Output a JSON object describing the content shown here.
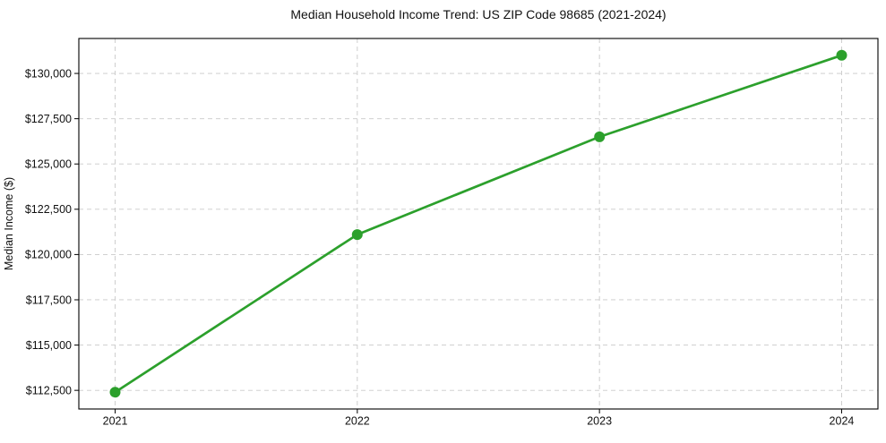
{
  "figure": {
    "background": "#ffffff"
  },
  "chart_data": {
    "type": "line",
    "title": "Median Household Income Trend: US ZIP Code 98685 (2021-2024)",
    "xlabel": "",
    "ylabel": "Median Income ($)",
    "categories": [
      "2021",
      "2022",
      "2023",
      "2024"
    ],
    "series": [
      {
        "name": "median-household-income",
        "values": [
          112400,
          121100,
          126500,
          131000
        ]
      }
    ],
    "yticks": [
      {
        "value": 112500,
        "label": "$112,500"
      },
      {
        "value": 115000,
        "label": "$115,000"
      },
      {
        "value": 117500,
        "label": "$117,500"
      },
      {
        "value": 120000,
        "label": "$120,000"
      },
      {
        "value": 122500,
        "label": "$122,500"
      },
      {
        "value": 125000,
        "label": "$125,000"
      },
      {
        "value": 127500,
        "label": "$127,500"
      },
      {
        "value": 130000,
        "label": "$130,000"
      }
    ],
    "ylim": [
      111470,
      131930
    ],
    "grid": "dashed-both-axes",
    "legend": "none",
    "colors": {
      "line": "#2ca02c",
      "marker": "#2ca02c",
      "grid": "#c9c9c9",
      "frame": "#000000",
      "text": "#111111"
    },
    "marker": "circle",
    "marker_radius": 6,
    "line_width": 2.7
  }
}
